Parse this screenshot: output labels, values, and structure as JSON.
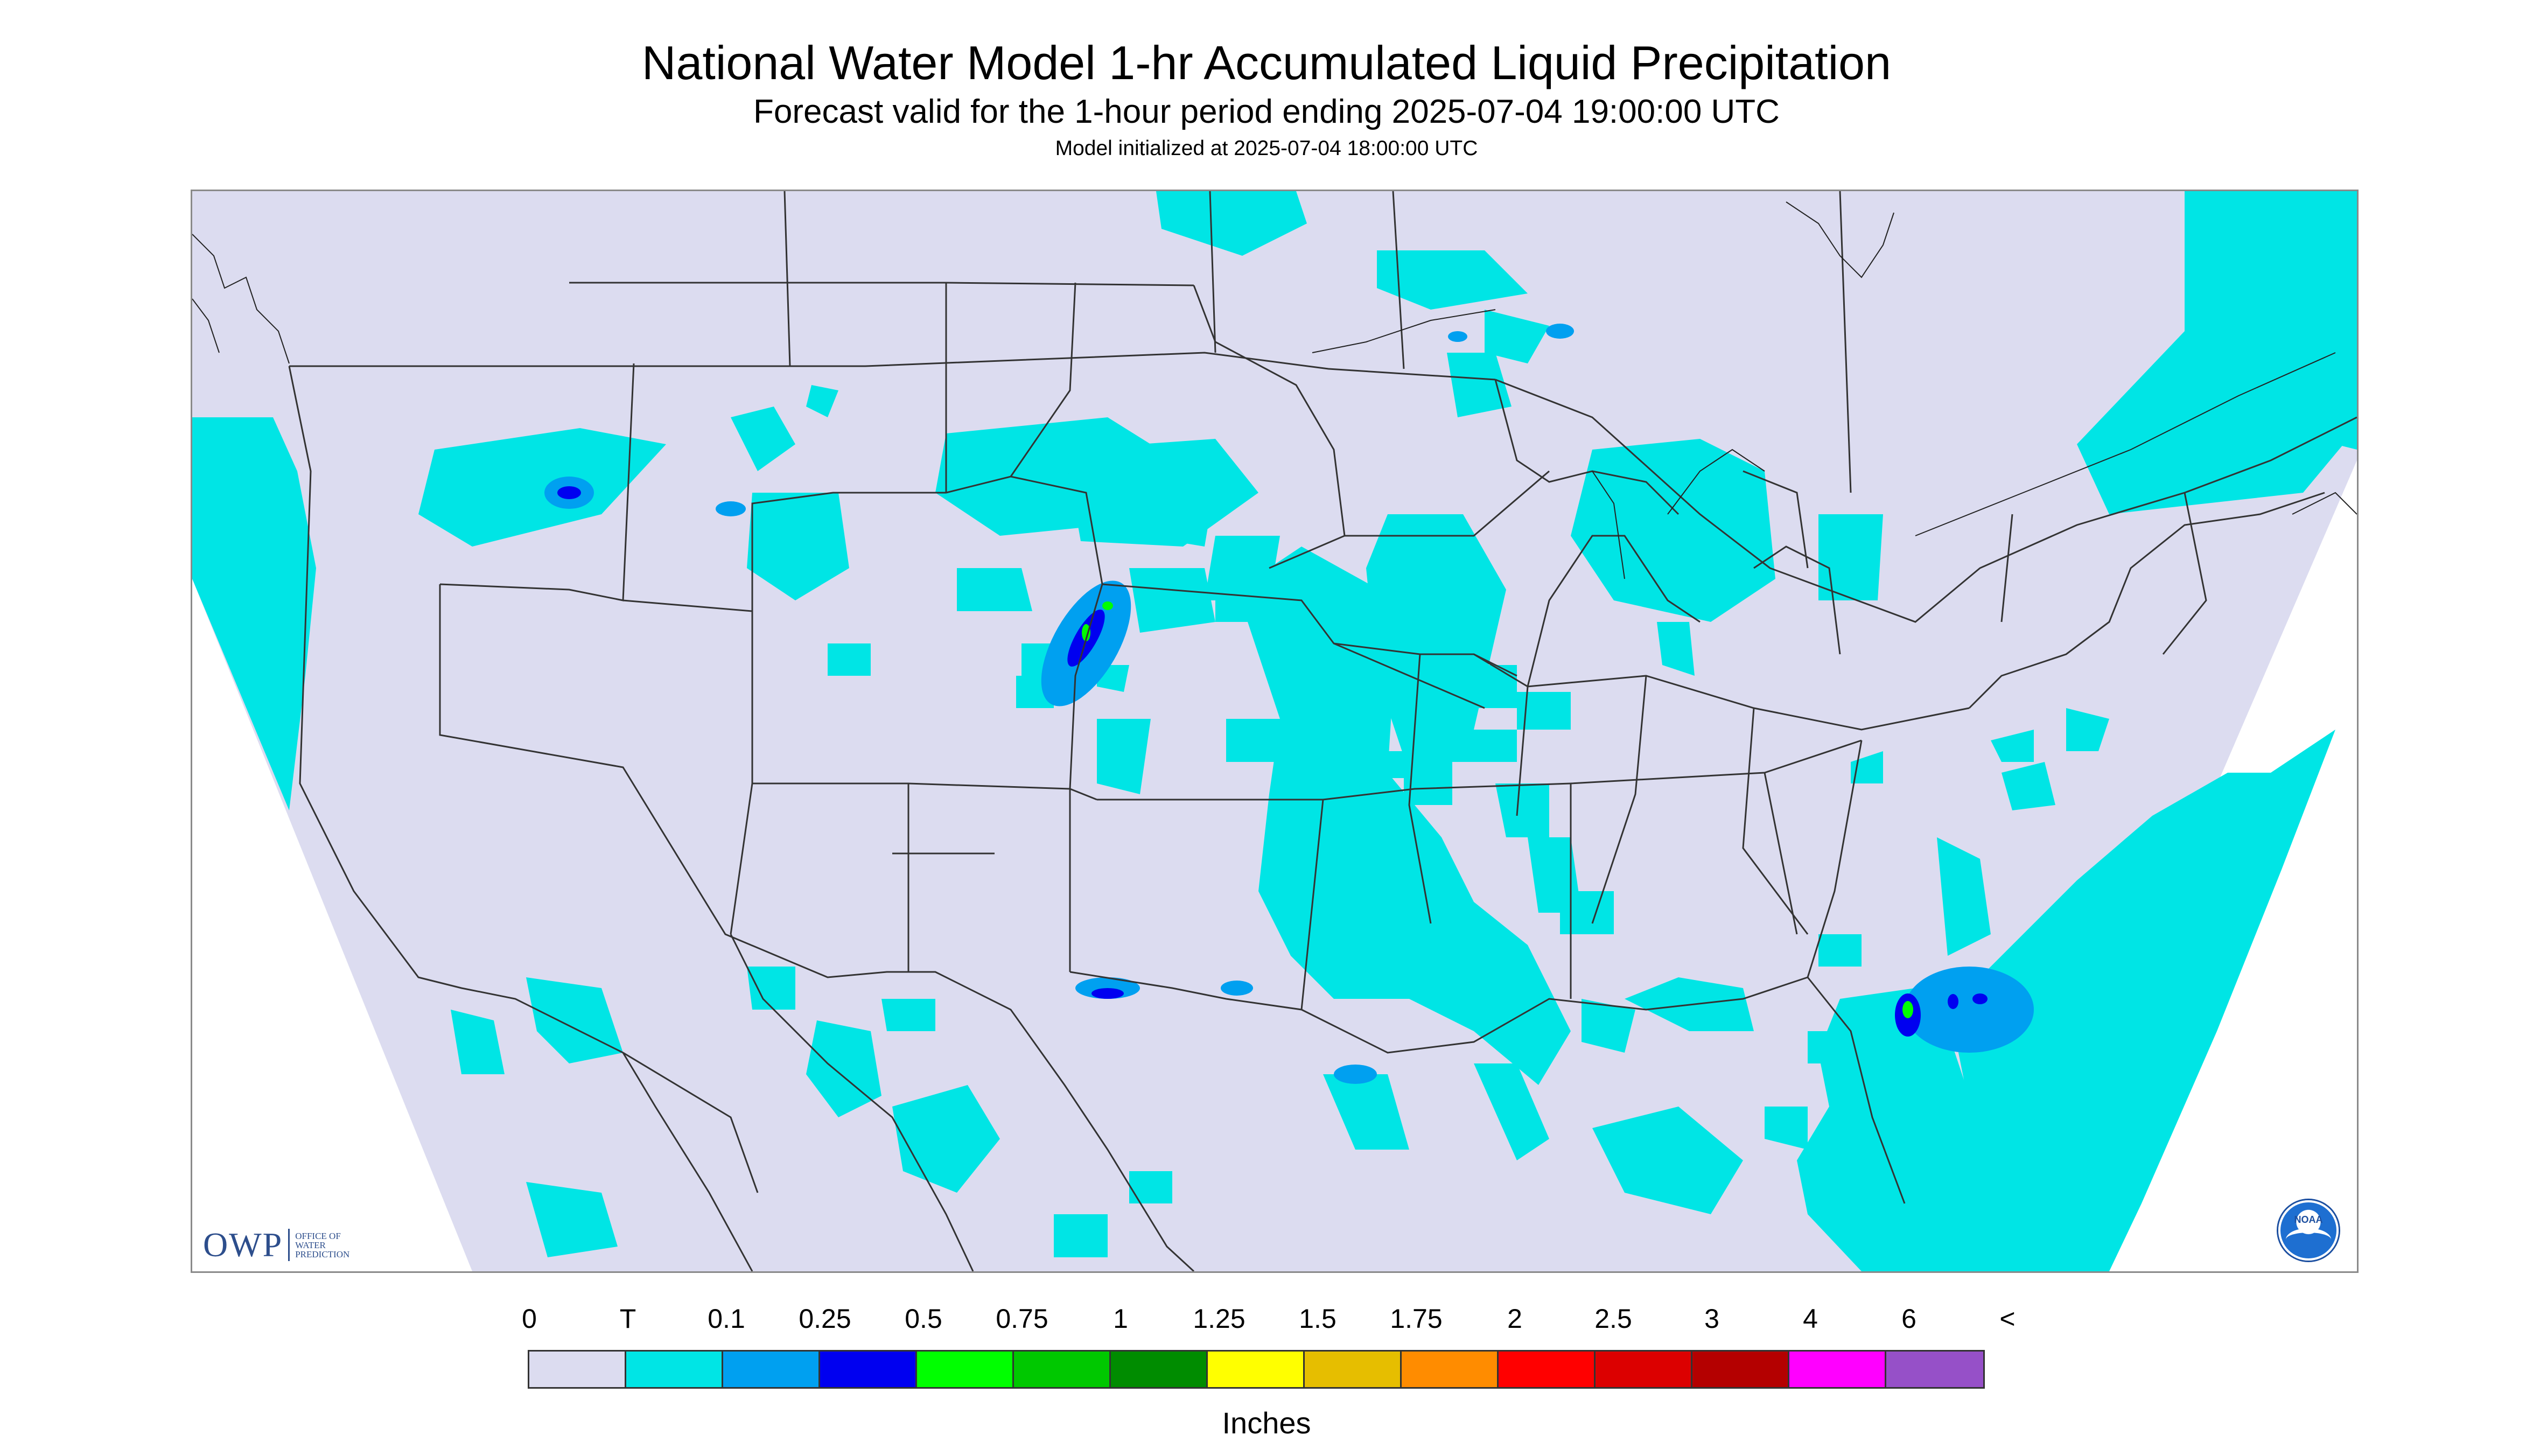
{
  "header": {
    "title": "National Water Model 1-hr Accumulated Liquid Precipitation",
    "subtitle": "Forecast valid for the 1-hour period ending 2025-07-04 19:00:00 UTC",
    "init": "Model initialized at 2025-07-04 18:00:00 UTC"
  },
  "logos": {
    "owp_mark": "OWP",
    "owp_sub": [
      "OFFICE OF",
      "WATER",
      "PREDICTION"
    ],
    "noaa": "NOAA"
  },
  "legend": {
    "units": "Inches",
    "tick_labels": [
      "0",
      "T",
      "0.1",
      "0.25",
      "0.5",
      "0.75",
      "1",
      "1.25",
      "1.5",
      "1.75",
      "2",
      "2.5",
      "3",
      "4",
      "6",
      "<"
    ],
    "colors": [
      "#dcdcf0",
      "#00e5e5",
      "#00a0f0",
      "#0000f0",
      "#00ff00",
      "#00c800",
      "#008c00",
      "#ffff00",
      "#e6be00",
      "#ff8c00",
      "#ff0000",
      "#dc0000",
      "#b40000",
      "#ff00ff",
      "#9650c8"
    ]
  },
  "map": {
    "background_color": "#dcdcf0",
    "light_color": "#00e5e5",
    "boundary_color": "#333333"
  }
}
